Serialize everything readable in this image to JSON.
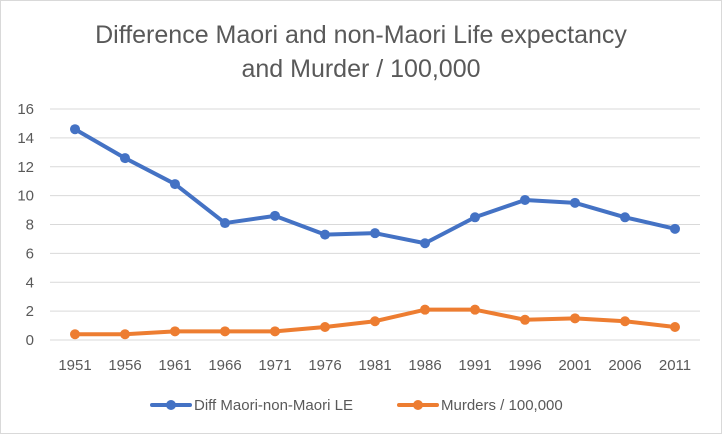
{
  "chart_data": {
    "type": "line",
    "title_lines": [
      "Difference Maori and non-Maori Life expectancy",
      "and Murder / 100,000"
    ],
    "x": [
      "1951",
      "1956",
      "1961",
      "1966",
      "1971",
      "1976",
      "1981",
      "1986",
      "1991",
      "1996",
      "2001",
      "2006",
      "2011"
    ],
    "y_ticks": [
      "0",
      "2",
      "4",
      "6",
      "8",
      "10",
      "12",
      "14",
      "16"
    ],
    "ylim": [
      0,
      16
    ],
    "grid": true,
    "legend_position": "bottom",
    "series": [
      {
        "name": "Diff Maori-non-Maori LE",
        "color": "#4472c4",
        "values": [
          14.6,
          12.6,
          10.8,
          8.1,
          8.6,
          7.3,
          7.4,
          6.7,
          8.5,
          9.7,
          9.5,
          8.5,
          7.7
        ]
      },
      {
        "name": "Murders / 100,000",
        "color": "#ed7d31",
        "values": [
          0.4,
          0.4,
          0.6,
          0.6,
          0.6,
          0.9,
          1.3,
          2.1,
          2.1,
          1.4,
          1.5,
          1.3,
          0.9
        ]
      }
    ]
  },
  "colors": {
    "grid": "#d9d9d9",
    "text": "#595959"
  }
}
